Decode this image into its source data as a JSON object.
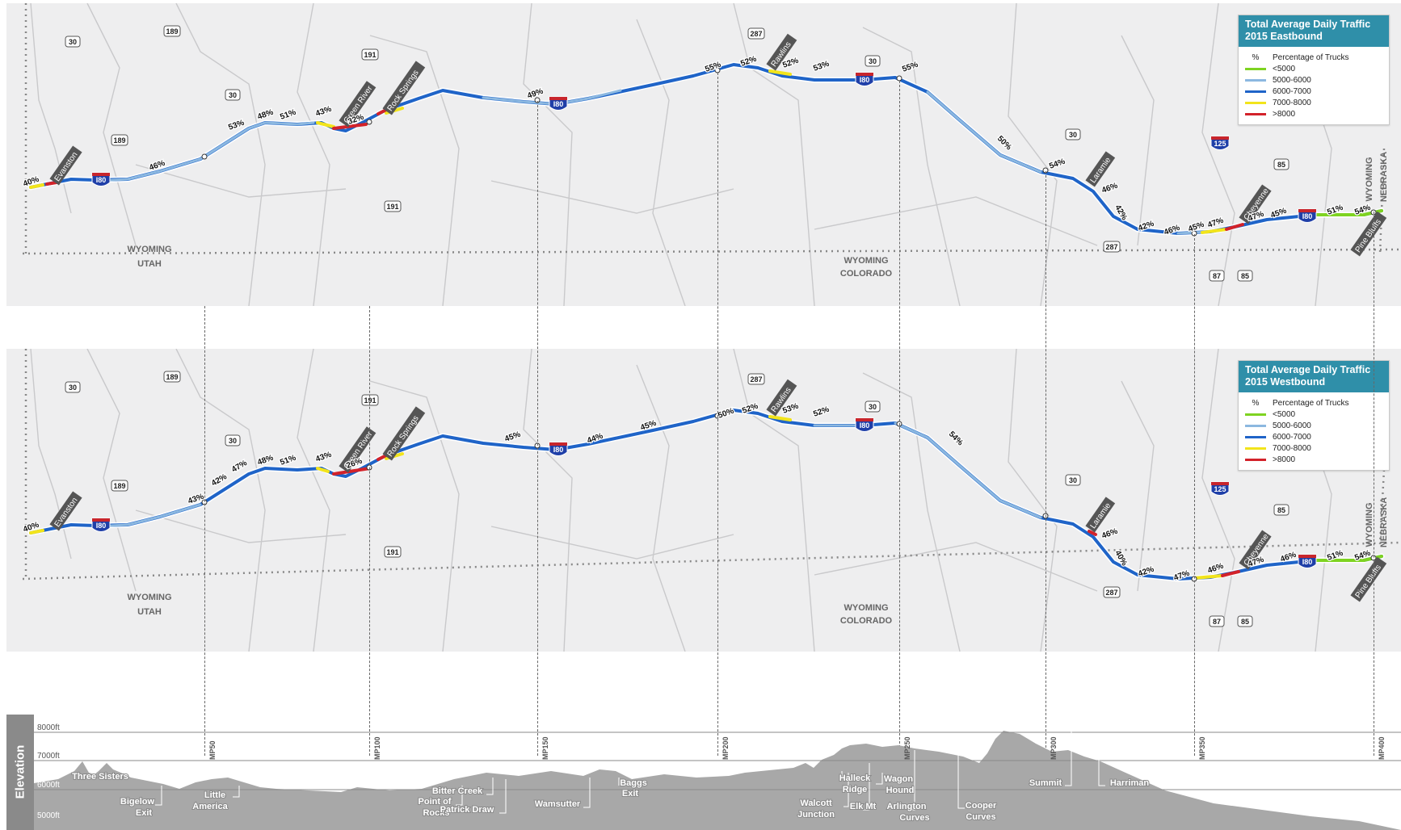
{
  "east": {
    "legend_title_1": "Total Average Daily Traffic",
    "legend_title_2": "2015 Eastbound",
    "pct_symbol": "%",
    "pct_label": "Percentage of Trucks",
    "legend_items": [
      {
        "label": "<5000",
        "color": "#7ed321"
      },
      {
        "label": "5000-6000",
        "color": "#8cb8e0"
      },
      {
        "label": "6000-7000",
        "color": "#1f64c8"
      },
      {
        "label": "7000-8000",
        "color": "#f2e41b"
      },
      {
        "label": ">8000",
        "color": "#d3222a"
      }
    ],
    "truck_pct": [
      "40%",
      "46%",
      "53%",
      "48%",
      "51%",
      "43%",
      "32%",
      "49%",
      "55%",
      "52%",
      "52%",
      "53%",
      "55%",
      "50%",
      "54%",
      "46%",
      "42%",
      "42%",
      "46%",
      "45%",
      "47%",
      "47%",
      "45%",
      "51%",
      "54%"
    ]
  },
  "west": {
    "legend_title_1": "Total Average Daily Traffic",
    "legend_title_2": "2015 Westbound",
    "pct_symbol": "%",
    "pct_label": "Percentage of Trucks",
    "legend_items": [
      {
        "label": "<5000",
        "color": "#7ed321"
      },
      {
        "label": "5000-6000",
        "color": "#8cb8e0"
      },
      {
        "label": "6000-7000",
        "color": "#1f64c8"
      },
      {
        "label": "7000-8000",
        "color": "#f2e41b"
      },
      {
        "label": ">8000",
        "color": "#d3222a"
      }
    ],
    "truck_pct": [
      "40%",
      "43%",
      "42%",
      "47%",
      "48%",
      "51%",
      "43%",
      "26%",
      "45%",
      "44%",
      "45%",
      "50%",
      "52%",
      "53%",
      "52%",
      "54%",
      "46%",
      "40%",
      "42%",
      "47%",
      "46%",
      "47%",
      "46%",
      "51%",
      "54%"
    ]
  },
  "cities": [
    "Evanston",
    "Green River",
    "Rock Springs",
    "Rawlins",
    "Laramie",
    "Cheyenne",
    "Pine Bluffs"
  ],
  "states": {
    "wy": "WYOMING",
    "ut": "UTAH",
    "co": "COLORADO",
    "ne": "NEBRASKA"
  },
  "interstate": "I80",
  "route_shields": [
    "30",
    "189",
    "191",
    "287",
    "125",
    "85",
    "87"
  ],
  "elevation": {
    "axis_label": "Elevation",
    "y_ticks": [
      "8000ft",
      "7000ft",
      "6000ft",
      "5000ft"
    ],
    "mileposts": [
      "MP50",
      "MP100",
      "MP150",
      "MP200",
      "MP250",
      "MP300",
      "MP350",
      "MP400"
    ],
    "landmarks": [
      {
        "l1": "Three Sisters",
        "l2": ""
      },
      {
        "l1": "Bigelow",
        "l2": "Exit"
      },
      {
        "l1": "Little",
        "l2": "America"
      },
      {
        "l1": "Point of",
        "l2": "Rocks"
      },
      {
        "l1": "Bitter Creek",
        "l2": ""
      },
      {
        "l1": "Patrick Draw",
        "l2": ""
      },
      {
        "l1": "Wamsutter",
        "l2": ""
      },
      {
        "l1": "Baggs",
        "l2": "Exit"
      },
      {
        "l1": "Walcott",
        "l2": "Junction"
      },
      {
        "l1": "Halleck",
        "l2": "Ridge"
      },
      {
        "l1": "Elk Mt",
        "l2": ""
      },
      {
        "l1": "Wagon",
        "l2": "Hound"
      },
      {
        "l1": "Arlington",
        "l2": "Curves"
      },
      {
        "l1": "Cooper",
        "l2": "Curves"
      },
      {
        "l1": "Summit",
        "l2": ""
      },
      {
        "l1": "Harriman",
        "l2": ""
      }
    ]
  }
}
